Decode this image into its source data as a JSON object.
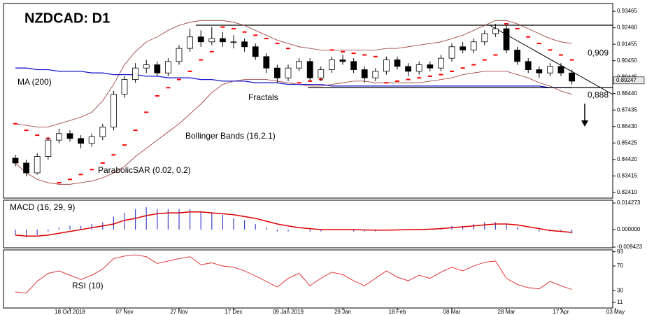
{
  "chart_data": [
    {
      "type": "candlestick",
      "title": "NZDCAD: D1",
      "categories": [
        null,
        null,
        null,
        null,
        null,
        "18 Oct 2018",
        null,
        null,
        null,
        null,
        "07 Nov",
        null,
        null,
        null,
        null,
        "27 Nov",
        null,
        null,
        null,
        null,
        "17 Dec",
        null,
        null,
        null,
        null,
        "09 Jan 2019",
        null,
        null,
        null,
        null,
        "29 Jan",
        null,
        null,
        null,
        null,
        "18 Feb",
        null,
        null,
        null,
        null,
        "08 Mar",
        null,
        null,
        null,
        null,
        "28 Mar",
        null,
        null,
        null,
        null,
        "17 Apr",
        null,
        null,
        null,
        null,
        "03 May"
      ],
      "open": [
        0.845,
        0.842,
        0.836,
        0.846,
        0.856,
        0.86,
        0.857,
        0.854,
        0.858,
        0.864,
        0.884,
        0.893,
        0.9,
        0.902,
        0.897,
        0.904,
        0.912,
        0.919,
        0.916,
        0.918,
        0.916,
        0.916,
        0.913,
        0.907,
        0.9,
        0.894,
        0.9,
        0.904,
        0.894,
        0.899,
        0.905,
        0.904,
        0.899,
        0.894,
        0.898,
        0.905,
        0.901,
        0.898,
        0.902,
        0.9,
        0.906,
        0.913,
        0.911,
        0.916,
        0.921,
        0.924,
        0.911,
        0.904,
        0.899,
        0.897,
        0.901,
        0.897,
        null,
        null,
        null,
        null
      ],
      "high": [
        0.847,
        0.844,
        0.848,
        0.858,
        0.863,
        0.862,
        0.859,
        0.86,
        0.866,
        0.886,
        0.895,
        0.903,
        0.905,
        0.904,
        0.906,
        0.914,
        0.924,
        0.923,
        0.925,
        0.922,
        0.92,
        0.918,
        0.915,
        0.909,
        0.902,
        0.902,
        0.906,
        0.906,
        0.901,
        0.907,
        0.908,
        0.906,
        0.901,
        0.9,
        0.907,
        0.907,
        0.903,
        0.904,
        0.904,
        0.908,
        0.915,
        0.916,
        0.918,
        0.923,
        0.927,
        0.926,
        0.913,
        0.906,
        0.901,
        0.903,
        0.903,
        0.899,
        null,
        null,
        null,
        null
      ],
      "low": [
        0.84,
        0.834,
        0.835,
        0.844,
        0.854,
        0.855,
        0.851,
        0.852,
        0.856,
        0.862,
        0.882,
        0.891,
        0.897,
        0.895,
        0.895,
        0.902,
        0.91,
        0.913,
        0.914,
        0.913,
        0.912,
        0.91,
        0.905,
        0.897,
        0.891,
        0.892,
        0.898,
        0.892,
        0.892,
        0.897,
        0.902,
        0.897,
        0.891,
        0.892,
        0.896,
        0.899,
        0.895,
        0.896,
        0.898,
        0.898,
        0.904,
        0.909,
        0.909,
        0.914,
        0.919,
        0.909,
        0.902,
        0.897,
        0.894,
        0.895,
        0.895,
        0.89,
        null,
        null,
        null,
        null
      ],
      "close": [
        0.842,
        0.836,
        0.846,
        0.856,
        0.86,
        0.857,
        0.854,
        0.858,
        0.864,
        0.884,
        0.893,
        0.9,
        0.902,
        0.897,
        0.904,
        0.912,
        0.919,
        0.916,
        0.918,
        0.916,
        0.916,
        0.913,
        0.907,
        0.9,
        0.894,
        0.9,
        0.904,
        0.894,
        0.899,
        0.905,
        0.904,
        0.899,
        0.894,
        0.898,
        0.905,
        0.901,
        0.898,
        0.902,
        0.9,
        0.906,
        0.913,
        0.911,
        0.916,
        0.921,
        0.924,
        0.911,
        0.904,
        0.899,
        0.897,
        0.901,
        0.897,
        0.892,
        null,
        null,
        null,
        null
      ],
      "up_color": "#ffffff",
      "down_color": "#000000",
      "ylim": [
        0.8206,
        0.9394
      ],
      "yticks": [
        0.93465,
        {
          "value": 0.9246,
          "label": "0.92460"
        },
        0.91455,
        {
          "value": 0.9045,
          "label": "0.90450"
        },
        0.89445,
        {
          "value": 0.8844,
          "label": "0.88440"
        },
        0.87435,
        {
          "value": 0.8643,
          "label": "0.86430"
        },
        0.85425,
        {
          "value": 0.8442,
          "label": "0.84420"
        },
        0.83415,
        {
          "value": 0.8241,
          "label": "0.82410"
        }
      ],
      "last_price": 0.89247,
      "overlays": [
        {
          "name": "MA (200)",
          "color": "#1a1acc",
          "values": [
            0.9,
            0.9,
            0.899,
            0.899,
            0.898,
            0.898,
            0.898,
            0.897,
            0.897,
            0.896,
            0.896,
            0.896,
            0.895,
            0.895,
            0.894,
            0.894,
            0.894,
            0.893,
            0.893,
            0.892,
            0.892,
            0.892,
            0.891,
            0.891,
            0.891,
            0.89,
            0.89,
            0.89,
            0.89,
            0.889,
            0.889,
            0.889,
            0.889,
            0.889,
            0.889,
            0.889,
            0.889,
            0.889,
            0.889,
            0.889,
            0.889,
            0.889,
            0.889,
            0.889,
            0.889,
            0.889,
            0.889,
            0.889,
            0.889,
            0.888,
            0.888,
            0.888,
            null,
            null,
            null,
            null
          ]
        },
        {
          "name": "Bollinger Bands (16,2.1)",
          "color": "#9b3030",
          "upper": [
            0.866,
            0.865,
            0.864,
            0.864,
            0.866,
            0.868,
            0.87,
            0.873,
            0.88,
            0.89,
            0.902,
            0.91,
            0.916,
            0.919,
            0.923,
            0.926,
            0.928,
            0.929,
            0.929,
            0.929,
            0.928,
            0.926,
            0.923,
            0.92,
            0.917,
            0.915,
            0.913,
            0.912,
            0.911,
            0.911,
            0.911,
            0.911,
            0.911,
            0.911,
            0.912,
            0.912,
            0.913,
            0.914,
            0.915,
            0.916,
            0.918,
            0.92,
            0.923,
            0.926,
            0.929,
            0.929,
            0.927,
            0.924,
            0.921,
            0.918,
            0.916,
            0.915,
            null,
            null,
            null,
            null
          ],
          "lower": [
            0.842,
            0.836,
            0.832,
            0.83,
            0.829,
            0.829,
            0.83,
            0.831,
            0.833,
            0.836,
            0.84,
            0.846,
            0.851,
            0.856,
            0.861,
            0.866,
            0.872,
            0.878,
            0.885,
            0.89,
            0.892,
            0.893,
            0.893,
            0.893,
            0.892,
            0.891,
            0.89,
            0.889,
            0.889,
            0.89,
            0.891,
            0.892,
            0.892,
            0.891,
            0.891,
            0.891,
            0.891,
            0.891,
            0.892,
            0.893,
            0.894,
            0.896,
            0.897,
            0.898,
            0.898,
            0.898,
            0.896,
            0.894,
            0.891,
            0.889,
            0.886,
            0.884,
            null,
            null,
            null,
            null
          ]
        },
        {
          "name": "ParabolicSAR (0.02, 0.2)",
          "color": "#ff0000",
          "values": [
            0.866,
            0.862,
            0.859,
            0.857,
            0.83,
            0.832,
            0.835,
            0.838,
            0.842,
            0.847,
            0.853,
            0.862,
            0.873,
            0.883,
            0.888,
            0.893,
            0.898,
            0.905,
            0.91,
            0.925,
            0.924,
            0.922,
            0.92,
            0.918,
            0.915,
            0.912,
            0.891,
            0.892,
            0.893,
            0.911,
            0.91,
            0.909,
            0.908,
            0.907,
            0.891,
            0.892,
            0.893,
            0.894,
            0.895,
            0.896,
            0.898,
            0.9,
            0.902,
            0.905,
            0.908,
            0.927,
            0.924,
            0.919,
            0.915,
            0.911,
            0.908,
            0.905,
            null,
            null,
            null,
            null
          ]
        }
      ],
      "annotations": [
        "Fractals"
      ],
      "levels": [
        {
          "label": "0,909",
          "value": 0.909
        },
        {
          "label": "0,888",
          "value": 0.888
        }
      ]
    },
    {
      "type": "macd",
      "title": "MACD (16, 29, 9)",
      "ylim": [
        -0.0098,
        0.0158
      ],
      "yticks": [
        0.014273,
        {
          "value": 0,
          "label": "0.000000"
        },
        -0.009423
      ],
      "histogram": {
        "color": "#4040cc",
        "values": [
          -0.003,
          -0.004,
          -0.003,
          -0.001,
          0.001,
          0.002,
          0.002,
          0.003,
          0.004,
          0.007,
          0.009,
          0.011,
          0.012,
          0.011,
          0.011,
          0.011,
          0.011,
          0.01,
          0.009,
          0.008,
          0.006,
          0.005,
          0.003,
          0.001,
          -0.001,
          -0.001,
          0,
          -0.001,
          -0.001,
          0,
          0,
          -0.001,
          -0.001,
          -0.001,
          0,
          0,
          0,
          0,
          0,
          0.001,
          0.002,
          0.002,
          0.003,
          0.004,
          0.004,
          0.003,
          0.001,
          0,
          -0.001,
          -0.001,
          -0.001,
          -0.002,
          null,
          null,
          null,
          null
        ]
      },
      "signal": {
        "color": "#dd0000",
        "values": [
          -0.003,
          -0.0035,
          -0.0035,
          -0.003,
          -0.002,
          -0.001,
          0,
          0.001,
          0.002,
          0.003,
          0.005,
          0.006,
          0.0075,
          0.0085,
          0.009,
          0.009,
          0.0095,
          0.0095,
          0.009,
          0.0085,
          0.008,
          0.007,
          0.006,
          0.0045,
          0.003,
          0.002,
          0.001,
          0.0005,
          0,
          0,
          0,
          0,
          -0.0002,
          -0.0003,
          -0.0003,
          -0.0002,
          0,
          0,
          0.0002,
          0.0005,
          0.001,
          0.0015,
          0.002,
          0.0025,
          0.003,
          0.003,
          0.0025,
          0.0015,
          0.0005,
          -0.0005,
          -0.001,
          -0.0015,
          null,
          null,
          null,
          null
        ]
      }
    },
    {
      "type": "line",
      "title": "RSI (10)",
      "color": "#dd2222",
      "ylim": [
        2,
        96
      ],
      "yticks": [
        93,
        70,
        30,
        11
      ],
      "values": [
        28,
        26,
        45,
        58,
        62,
        55,
        48,
        55,
        65,
        82,
        86,
        88,
        85,
        74,
        78,
        82,
        85,
        72,
        75,
        70,
        68,
        62,
        54,
        45,
        36,
        50,
        58,
        38,
        50,
        60,
        56,
        46,
        38,
        50,
        62,
        52,
        46,
        55,
        50,
        60,
        68,
        62,
        70,
        76,
        78,
        50,
        40,
        35,
        33,
        45,
        38,
        32,
        null,
        null,
        null,
        null
      ]
    }
  ]
}
